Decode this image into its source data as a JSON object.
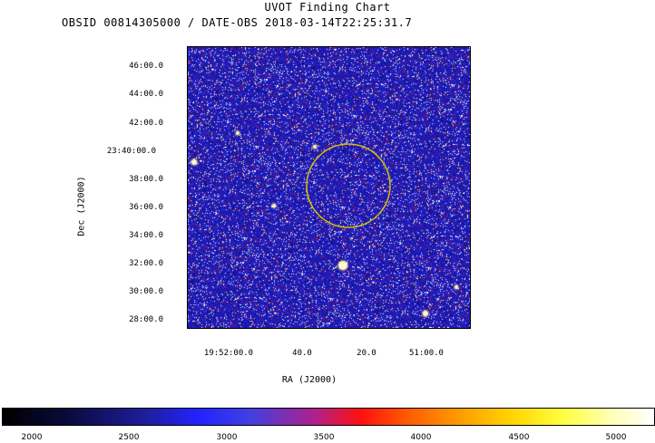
{
  "title": "UVOT Finding Chart",
  "subtitle": "OBSID 00814305000 / DATE-OBS 2018-03-14T22:25:31.7",
  "axes": {
    "ylabel": "Dec (J2000)",
    "xlabel": "RA (J2000)",
    "dec_ticks": [
      "46:00.0",
      "44:00.0",
      "42:00.0",
      "23:40:00.0",
      "38:00.0",
      "36:00.0",
      "34:00.0",
      "32:00.0",
      "30:00.0",
      "28:00.0"
    ],
    "ra_ticks": [
      "19:52:00.0",
      "40.0",
      "20.0",
      "51:00.0"
    ]
  },
  "colorbar": {
    "ticks": [
      "2000",
      "2500",
      "3000",
      "3500",
      "4000",
      "4500",
      "5000"
    ]
  },
  "colors": {
    "circle": "#d4c000",
    "background_blue": "#1a1ab8"
  }
}
